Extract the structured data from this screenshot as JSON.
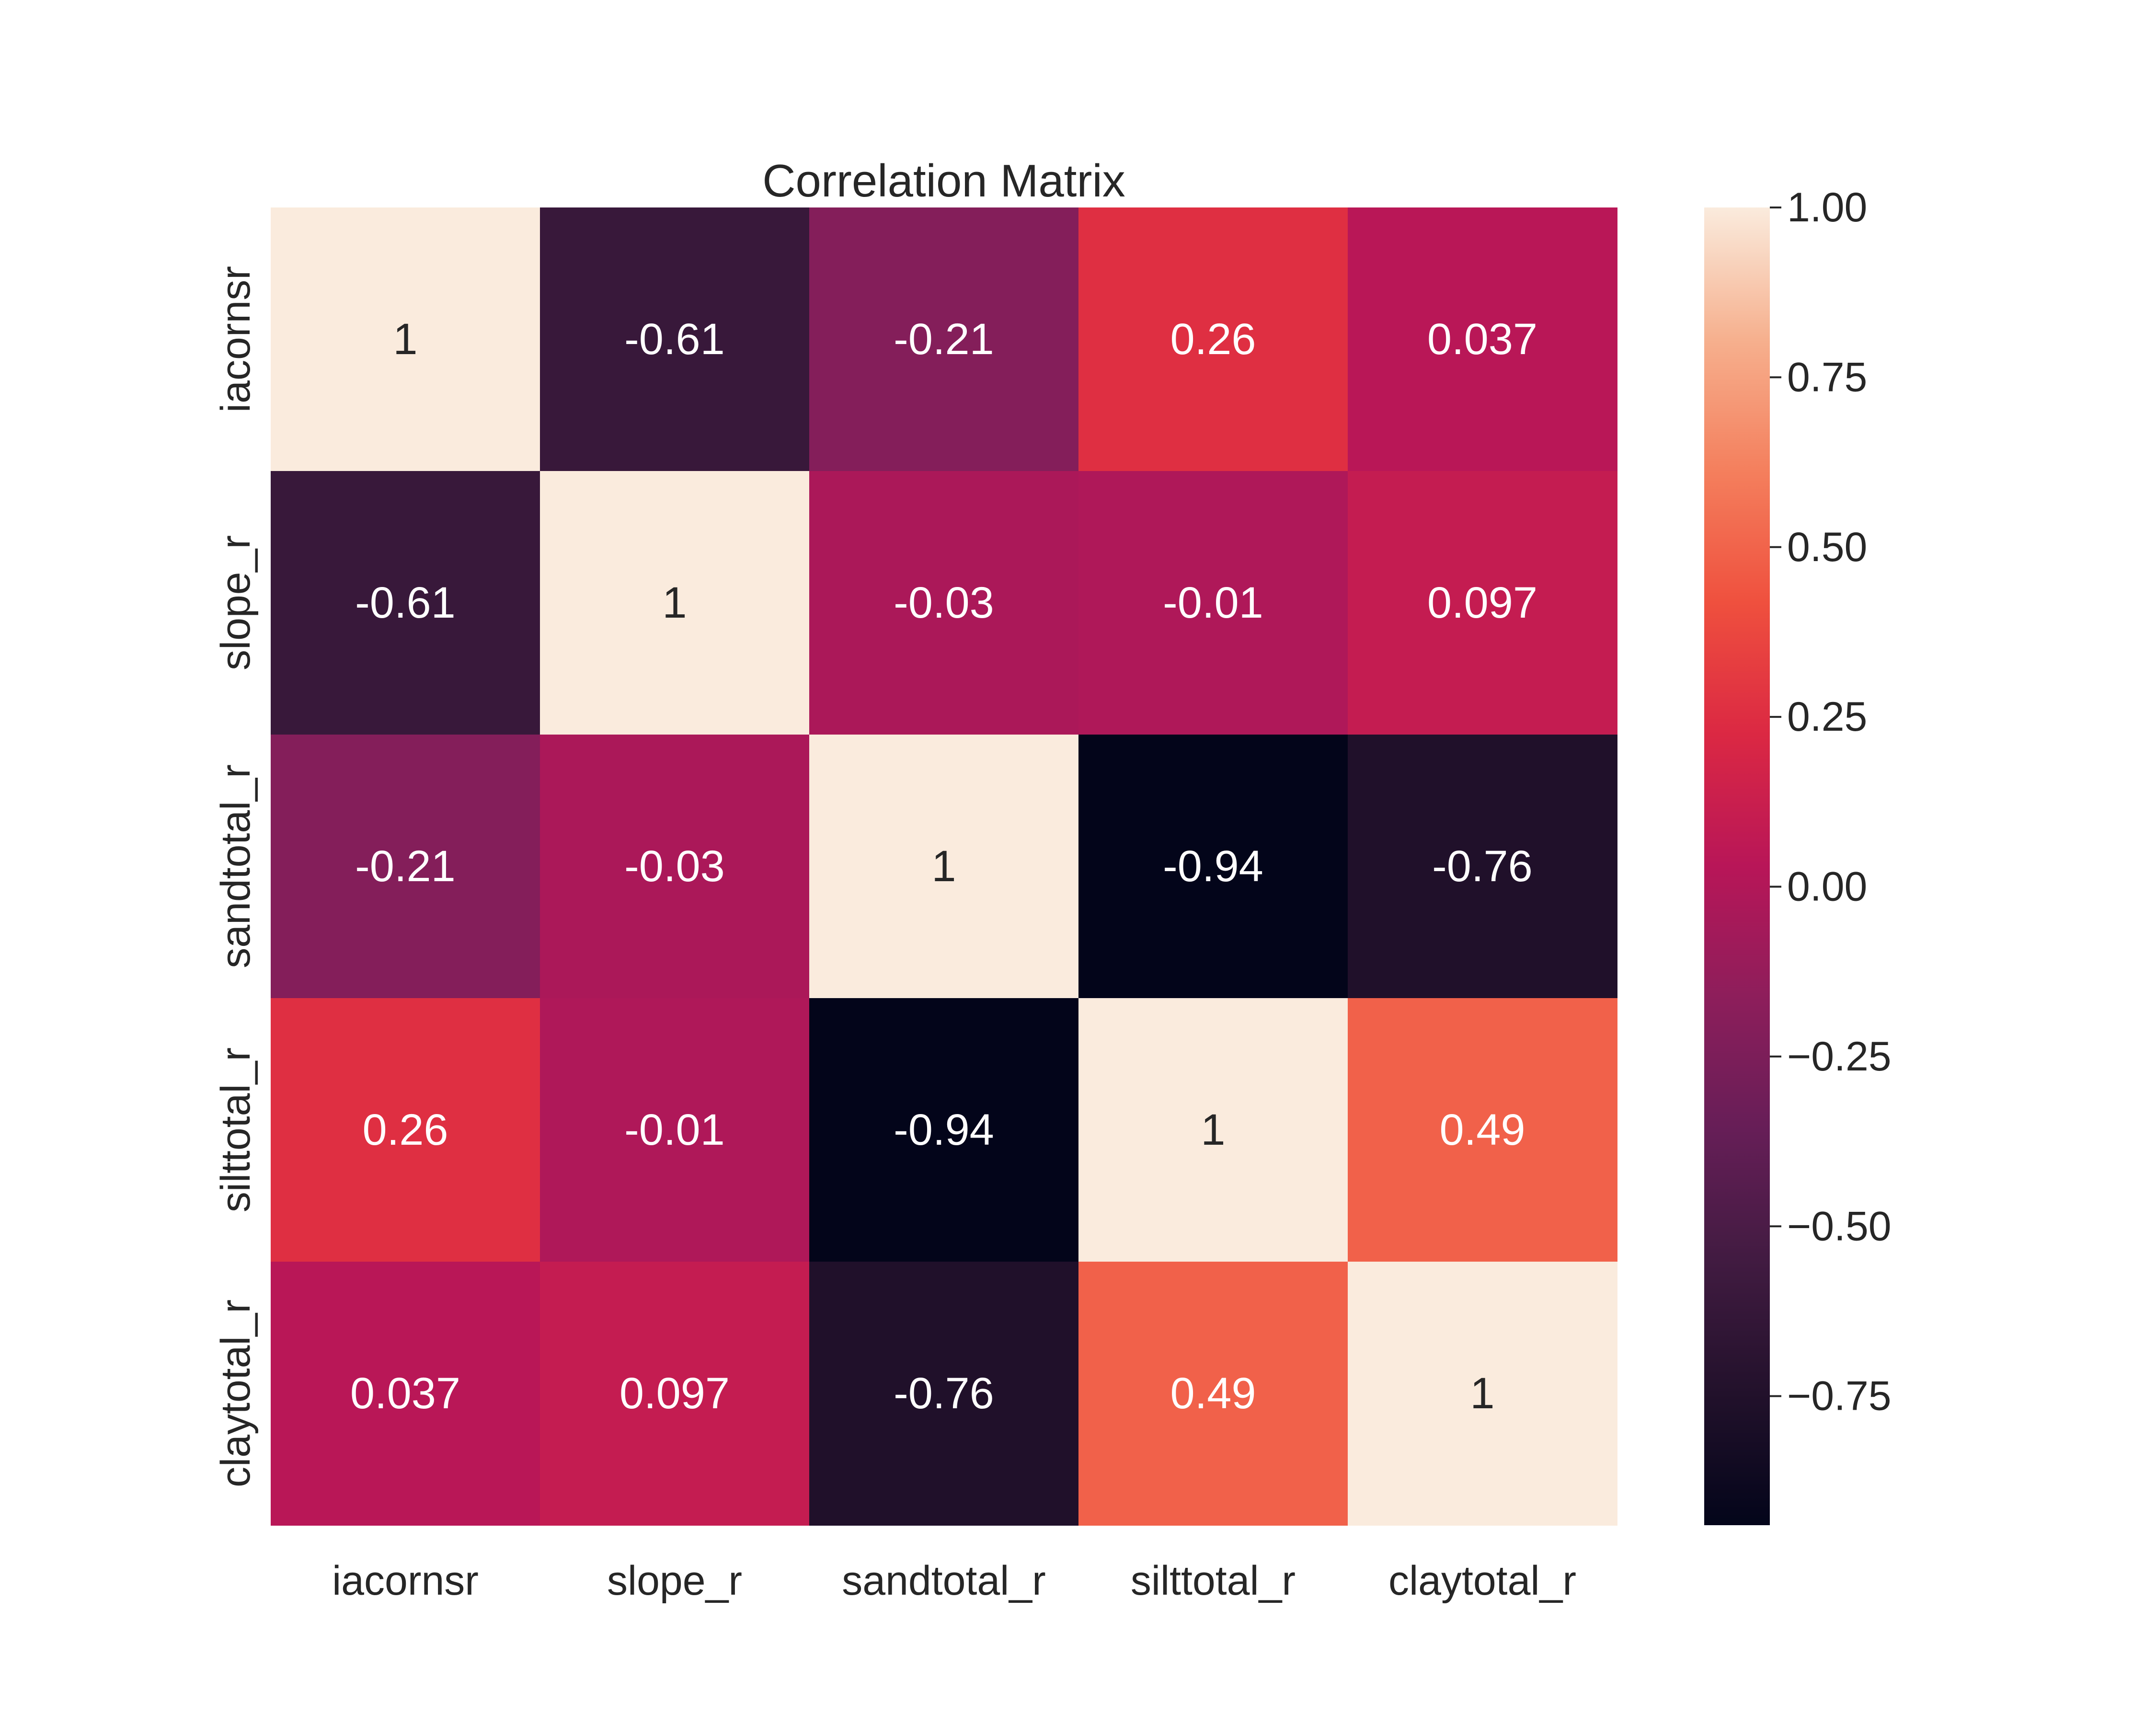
{
  "chart_data": {
    "type": "heatmap",
    "title": "Correlation Matrix",
    "xlabel": "",
    "ylabel": "",
    "x_categories": [
      "iacornsr",
      "slope_r",
      "sandtotal_r",
      "silttotal_r",
      "claytotal_r"
    ],
    "y_categories": [
      "iacornsr",
      "slope_r",
      "sandtotal_r",
      "silttotal_r",
      "claytotal_r"
    ],
    "values": [
      [
        1,
        -0.61,
        -0.21,
        0.26,
        0.037
      ],
      [
        -0.61,
        1,
        -0.03,
        -0.01,
        0.097
      ],
      [
        -0.21,
        -0.03,
        1,
        -0.94,
        -0.76
      ],
      [
        0.26,
        -0.01,
        -0.94,
        1,
        0.49
      ],
      [
        0.037,
        0.097,
        -0.76,
        0.49,
        1
      ]
    ],
    "cell_labels": [
      [
        "1",
        "-0.61",
        "-0.21",
        "0.26",
        "0.037"
      ],
      [
        "-0.61",
        "1",
        "-0.03",
        "-0.01",
        "0.097"
      ],
      [
        "-0.21",
        "-0.03",
        "1",
        "-0.94",
        "-0.76"
      ],
      [
        "0.26",
        "-0.01",
        "-0.94",
        "1",
        "0.49"
      ],
      [
        "0.037",
        "0.097",
        "-0.76",
        "0.49",
        "1"
      ]
    ],
    "colormap": "rocket",
    "color_range": [
      -0.94,
      1
    ],
    "colorbar": {
      "placement": "right",
      "ticks": [
        1.0,
        0.75,
        0.5,
        0.25,
        0.0,
        -0.25,
        -0.5,
        -0.75
      ],
      "tick_labels": [
        "1.00",
        "0.75",
        "0.50",
        "0.25",
        "0.00",
        "−0.25",
        "−0.50",
        "−0.75"
      ]
    },
    "grid": false
  }
}
